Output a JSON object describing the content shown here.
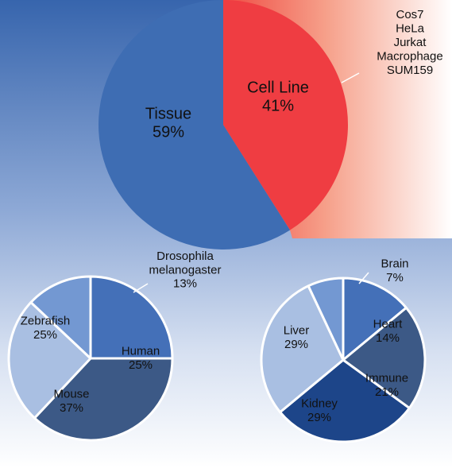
{
  "chart_data": [
    {
      "type": "pie",
      "slices": [
        {
          "label": "Tissue",
          "percent_label": "59%",
          "value": 59,
          "color": "#3e6db3"
        },
        {
          "label": "Cell Line",
          "percent_label": "41%",
          "value": 41,
          "color": "#ef3d42"
        }
      ],
      "annotation": [
        "Cos7",
        "HeLa",
        "Jurkat",
        "Macrophage",
        "SUM159"
      ]
    },
    {
      "type": "pie",
      "slices": [
        {
          "label": "Human",
          "percent_label": "25%",
          "value": 25,
          "color": "#4470b8"
        },
        {
          "label": "Mouse",
          "percent_label": "37%",
          "value": 37,
          "color": "#3c5986"
        },
        {
          "label": "Zebrafish",
          "percent_label": "25%",
          "value": 25,
          "color": "#a9bfe2"
        },
        {
          "label": "Drosophila melanogaster",
          "percent_label": "13%",
          "value": 13,
          "color": "#7398d2",
          "label_lines": [
            "Drosophila",
            "melanogaster",
            "13%"
          ]
        }
      ]
    },
    {
      "type": "pie",
      "slices": [
        {
          "label": "Heart",
          "percent_label": "14%",
          "value": 14,
          "color": "#4470b8"
        },
        {
          "label": "Immune",
          "percent_label": "21%",
          "value": 21,
          "color": "#3c5986"
        },
        {
          "label": "Kidney",
          "percent_label": "29%",
          "value": 29,
          "color": "#1d4589"
        },
        {
          "label": "Liver",
          "percent_label": "29%",
          "value": 29,
          "color": "#a9bfe2"
        },
        {
          "label": "Brain",
          "percent_label": "7%",
          "value": 7,
          "color": "#7398d2"
        }
      ]
    }
  ]
}
